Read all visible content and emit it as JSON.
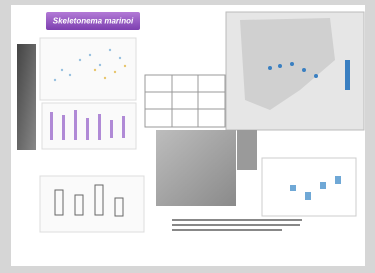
{
  "title": "Skeletonema marinoi"
}
